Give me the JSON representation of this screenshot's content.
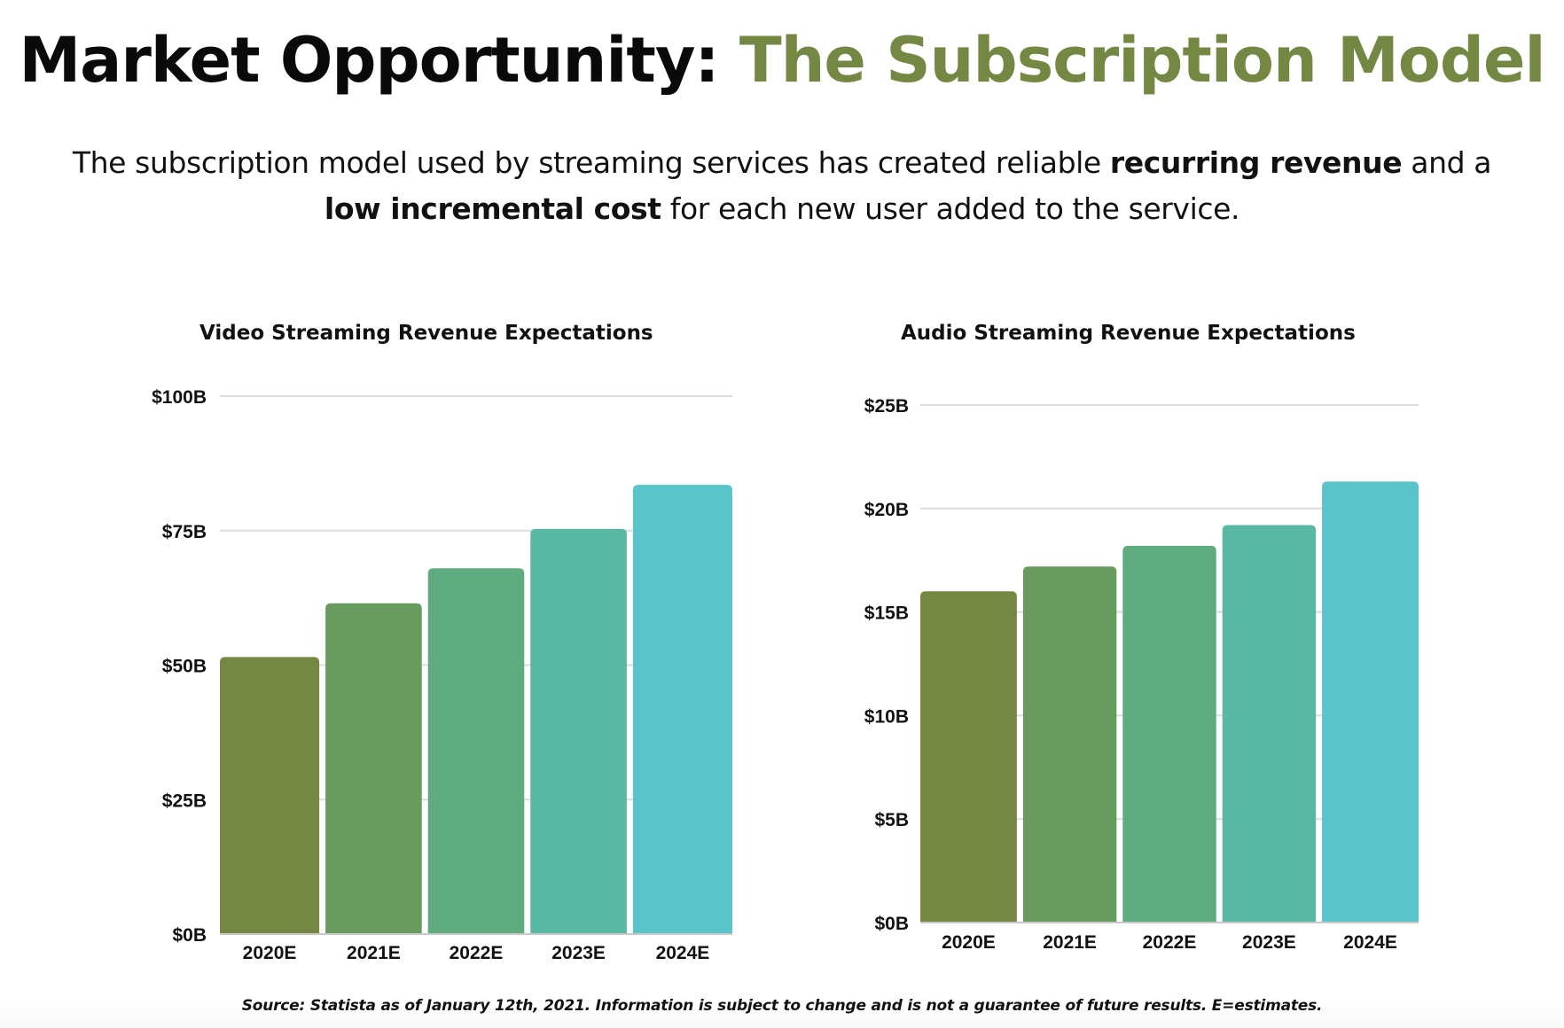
{
  "header": {
    "title_main": "Market Opportunity: ",
    "title_accent": "The Subscription Model",
    "accent_color": "#748843",
    "subtitle": {
      "part1": "The subscription model used by streaming services has created reliable ",
      "bold1": "recurring revenue",
      "part2": " and a ",
      "bold2": "low incremental cost",
      "part3": " for each new user added to the service."
    }
  },
  "footer": {
    "source": "Source: Statista as of January 12th, 2021. Information is subject to change and is not a guarantee of future results. E=estimates."
  },
  "chart_data": [
    {
      "type": "bar",
      "title": "Video Streaming Revenue Expectations",
      "categories": [
        "2020E",
        "2021E",
        "2022E",
        "2023E",
        "2024E"
      ],
      "values": [
        51.5,
        61.5,
        68,
        75.3,
        83.5
      ],
      "unit": "USD billions",
      "xlabel": "",
      "ylabel": "",
      "ylim": [
        0,
        100
      ],
      "yticks": [
        0,
        25,
        50,
        75,
        100
      ],
      "ytick_labels": [
        "$0B",
        "$25B",
        "$50B",
        "$75B",
        "$100B"
      ],
      "grid": true,
      "legend": "none",
      "colors": [
        "#748843",
        "#699a5e",
        "#5fab80",
        "#58b8a3",
        "#5ac4cb"
      ]
    },
    {
      "type": "bar",
      "title": "Audio Streaming Revenue Expectations",
      "categories": [
        "2020E",
        "2021E",
        "2022E",
        "2023E",
        "2024E"
      ],
      "values": [
        16.0,
        17.2,
        18.2,
        19.2,
        21.3
      ],
      "unit": "USD billions",
      "xlabel": "",
      "ylabel": "",
      "ylim": [
        0,
        25
      ],
      "yticks": [
        0,
        5,
        10,
        15,
        20,
        25
      ],
      "ytick_labels": [
        "$0B",
        "$5B",
        "$10B",
        "$15B",
        "$20B",
        "$25B"
      ],
      "grid": true,
      "legend": "none",
      "colors": [
        "#748843",
        "#699a5e",
        "#5fab80",
        "#58b8a3",
        "#5ac4cb"
      ]
    }
  ]
}
